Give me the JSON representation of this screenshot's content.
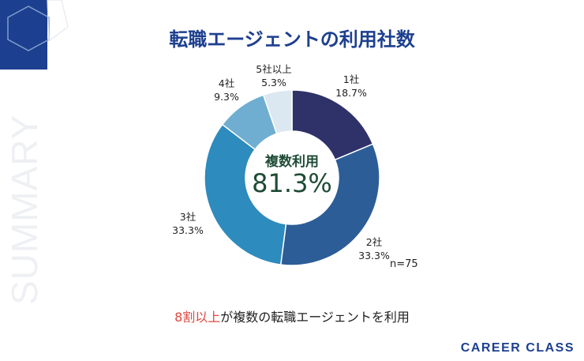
{
  "title": "転職エージェントの利用社数",
  "side_word": "SUMMARY",
  "colors": {
    "title": "#1d3f8f",
    "highlight": "#e0473f",
    "center_text": "#1e4b35",
    "slices": [
      "#2f3269",
      "#2c5d97",
      "#2d8bbd",
      "#70aed1",
      "#dbe8f1"
    ]
  },
  "chart_data": {
    "type": "pie",
    "subtype": "donut",
    "categories": [
      "1社",
      "2社",
      "3社",
      "4社",
      "5社以上"
    ],
    "values": [
      18.7,
      33.3,
      33.3,
      9.3,
      5.3
    ],
    "labels": [
      "18.7%",
      "33.3%",
      "33.3%",
      "9.3%",
      "5.3%"
    ],
    "center_title": "複数利用",
    "center_value": "81.3%",
    "sample": "n=75"
  },
  "summary": {
    "highlight": "8割以上",
    "rest": "が複数の転職エージェントを利用"
  },
  "brand": "CAREER CLASS"
}
